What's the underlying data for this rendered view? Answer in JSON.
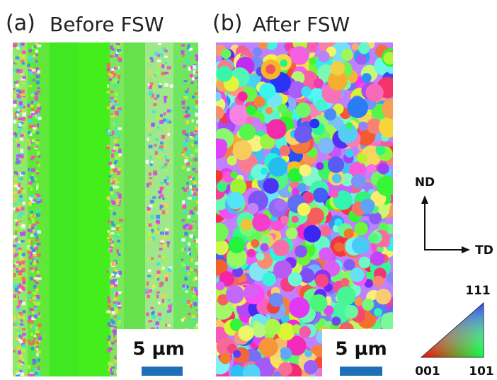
{
  "panel_a": {
    "letter": "(a)",
    "title": "Before FSW",
    "scale_label": "5 µm"
  },
  "panel_b": {
    "letter": "(b)",
    "title": "After FSW",
    "scale_label": "5 µm"
  },
  "axes": {
    "vertical": "ND",
    "horizontal": "TD"
  },
  "ipf_key": {
    "top": "111",
    "left": "001",
    "right": "101"
  }
}
